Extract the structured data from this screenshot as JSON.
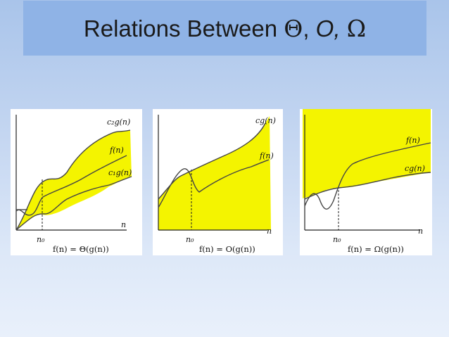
{
  "slide": {
    "title_prefix": "Relations Between ",
    "theta_symbol": "Θ",
    "sep1": ", ",
    "o_symbol": "O,",
    "sep2": " ",
    "omega_symbol": "Ω"
  },
  "panels": [
    {
      "curve_labels": [
        "c₂g(n)",
        "f(n)",
        "c₁g(n)"
      ],
      "axis_x_label": "n",
      "n0_label": "n₀",
      "caption": "f(n) = Θ(g(n))"
    },
    {
      "curve_labels": [
        "cg(n)",
        "f(n)"
      ],
      "axis_x_label": "n",
      "n0_label": "n₀",
      "caption": "f(n) = O(g(n))"
    },
    {
      "curve_labels": [
        "f(n)",
        "cg(n)"
      ],
      "axis_x_label": "n",
      "n0_label": "n₀",
      "caption": "f(n) = Ω(g(n))"
    }
  ],
  "colors": {
    "highlight": "#f4f400",
    "curve": "#444444",
    "axis": "#222222"
  }
}
